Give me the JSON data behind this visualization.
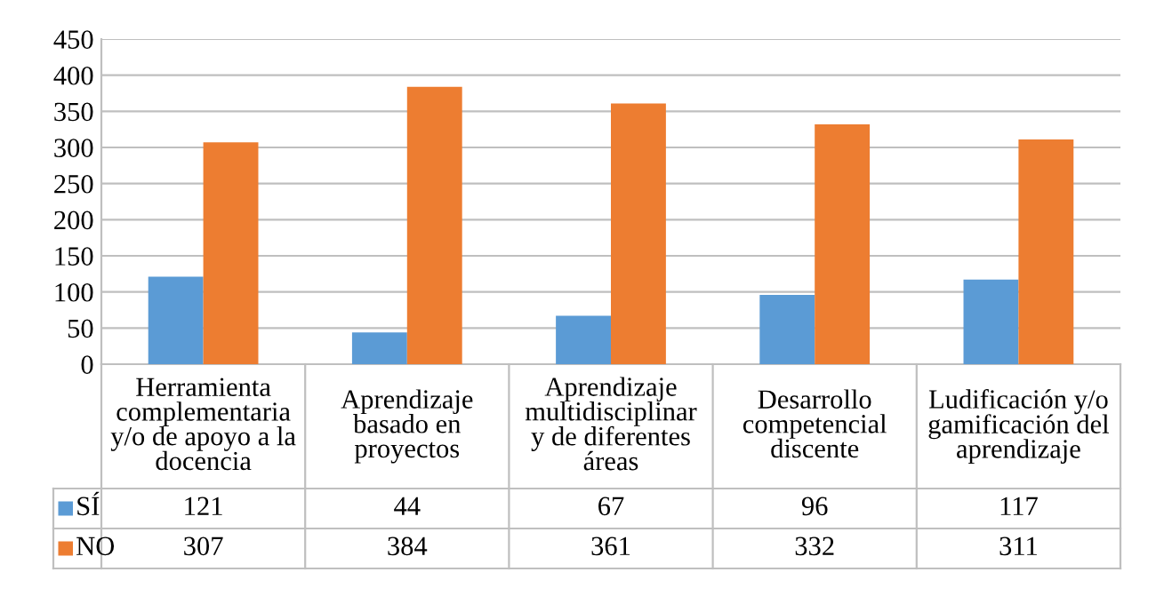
{
  "chart_data": {
    "type": "bar",
    "categories": [
      "Herramienta\ncomplementaria\ny/o de apoyo a la\ndocencia",
      "Aprendizaje\nbasado en\nproyectos",
      "Aprendizaje\nmultidisciplinar\ny de diferentes\náreas",
      "Desarrollo\ncompetencial\ndiscente",
      "Ludificación y/o\ngamificación del\naprendizaje"
    ],
    "series": [
      {
        "name": "SÍ",
        "color": "#5b9bd5",
        "values": [
          121,
          44,
          67,
          96,
          117
        ]
      },
      {
        "name": "NO",
        "color": "#ed7d31",
        "values": [
          307,
          384,
          361,
          332,
          311
        ]
      }
    ],
    "ylim": [
      0,
      450
    ],
    "yticks": [
      0,
      50,
      100,
      150,
      200,
      250,
      300,
      350,
      400,
      450
    ],
    "grid": "y",
    "legend": "bottom",
    "data_labels": true
  }
}
